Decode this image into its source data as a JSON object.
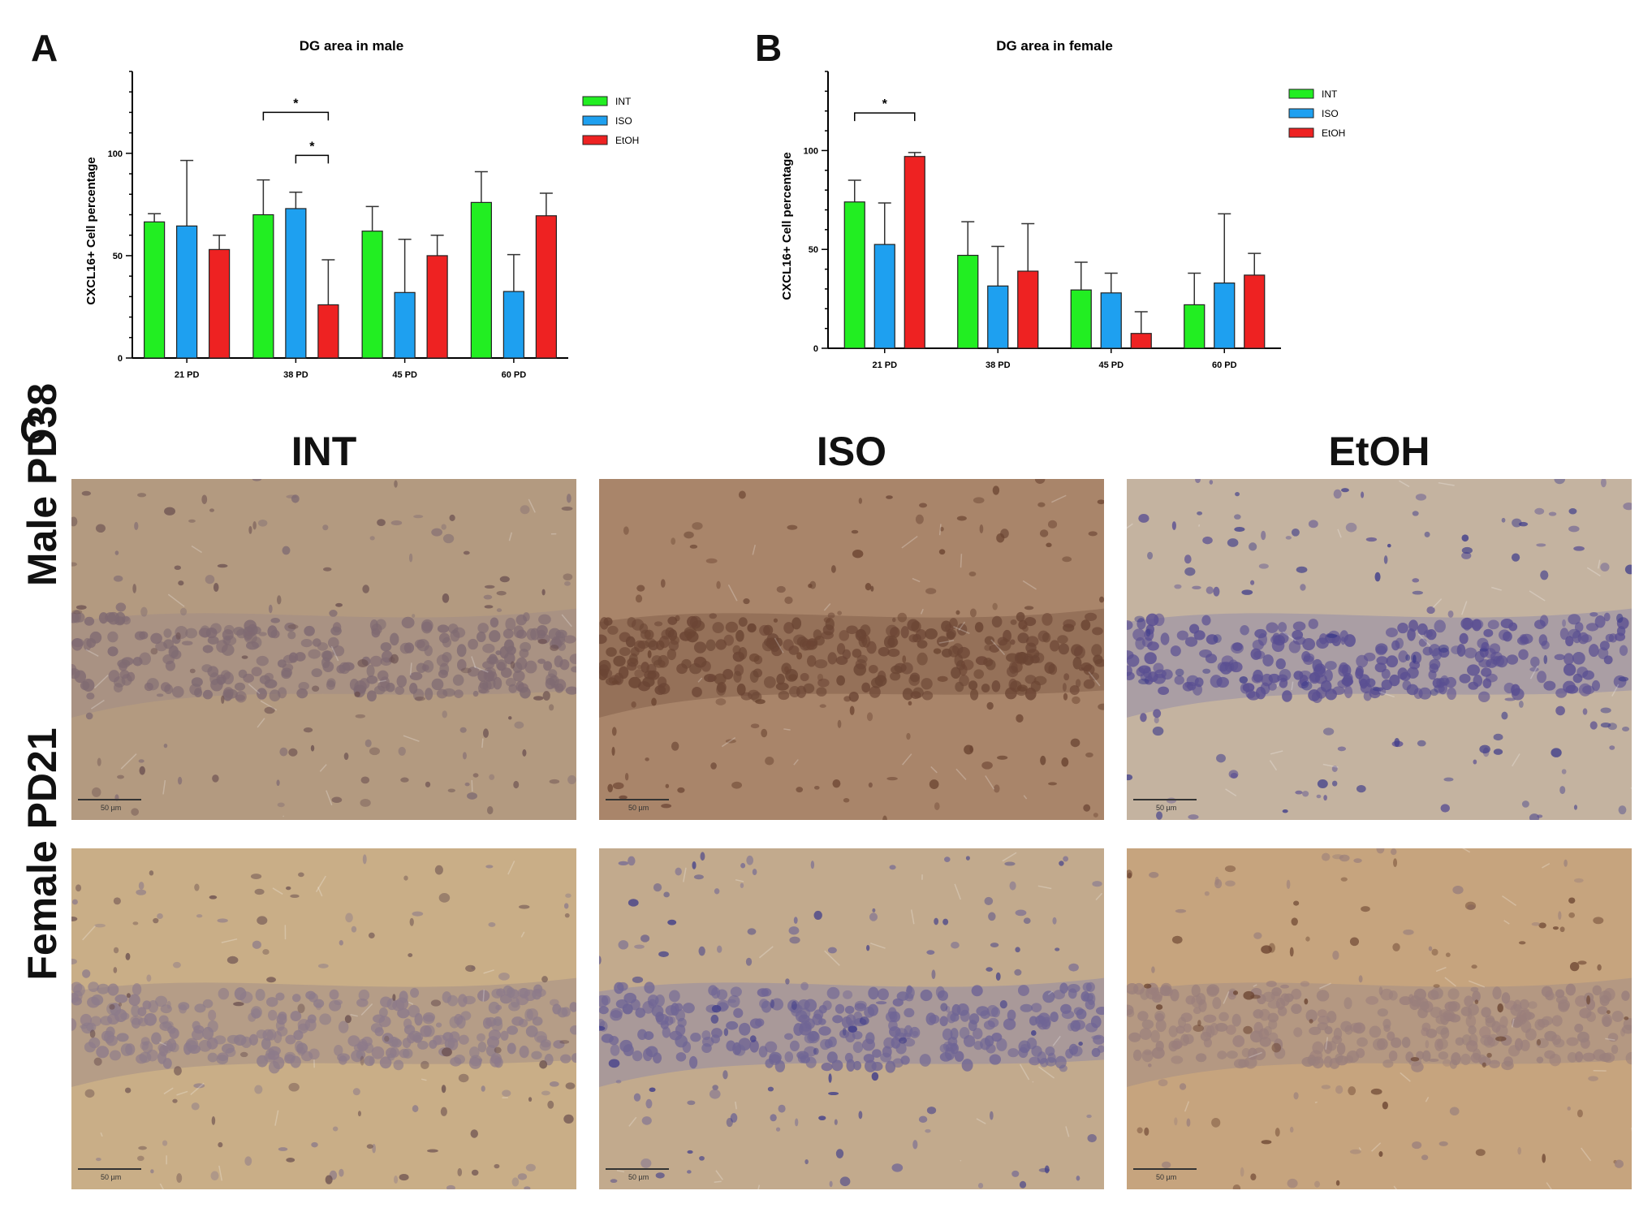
{
  "panels": {
    "a": "A",
    "b": "B",
    "c": "C"
  },
  "chart_data": [
    {
      "type": "bar",
      "title": "DG area in male",
      "ylabel": "CXCL16+ Cell percentage",
      "xlabel": "",
      "categories": [
        "21 PD",
        "38 PD",
        "45 PD",
        "60 PD"
      ],
      "ylim": [
        0,
        140
      ],
      "yticks": [
        0,
        50,
        100
      ],
      "series": [
        {
          "name": "INT",
          "color": "#22ee22",
          "values": [
            66.5,
            70,
            62,
            76
          ],
          "errors": [
            4,
            17,
            12,
            15
          ]
        },
        {
          "name": "ISO",
          "color": "#1ea0f0",
          "values": [
            64.5,
            73,
            32,
            32.5
          ],
          "errors": [
            32,
            8,
            26,
            18
          ]
        },
        {
          "name": "EtOH",
          "color": "#ee2222",
          "values": [
            53,
            26,
            50,
            69.5
          ],
          "errors": [
            7,
            22,
            10,
            11
          ]
        }
      ],
      "significance": [
        {
          "label": "*",
          "category": "38 PD",
          "from": "INT",
          "to": "EtOH",
          "y": 120
        },
        {
          "label": "*",
          "category": "38 PD",
          "from": "ISO",
          "to": "EtOH",
          "y": 99
        }
      ],
      "legend": "top-right"
    },
    {
      "type": "bar",
      "title": "DG area in female",
      "ylabel": "CXCL16+ Cell percentage",
      "xlabel": "",
      "categories": [
        "21 PD",
        "38 PD",
        "45 PD",
        "60 PD"
      ],
      "ylim": [
        0,
        140
      ],
      "yticks": [
        0,
        50,
        100
      ],
      "series": [
        {
          "name": "INT",
          "color": "#22ee22",
          "values": [
            74,
            47,
            29.5,
            22
          ],
          "errors": [
            11,
            17,
            14,
            16
          ]
        },
        {
          "name": "ISO",
          "color": "#1ea0f0",
          "values": [
            52.5,
            31.5,
            28,
            33
          ],
          "errors": [
            21,
            20,
            10,
            35
          ]
        },
        {
          "name": "EtOH",
          "color": "#ee2222",
          "values": [
            97,
            39,
            7.5,
            37
          ],
          "errors": [
            2,
            24,
            11,
            11
          ]
        }
      ],
      "significance": [
        {
          "label": "*",
          "category": "21 PD",
          "from": "INT",
          "to": "EtOH",
          "y": 119
        }
      ],
      "legend": "top-right"
    }
  ],
  "micrographs": {
    "columns": [
      "INT",
      "ISO",
      "EtOH"
    ],
    "rows": [
      "Male PD38",
      "Female PD21"
    ],
    "scale_label": "50 µm"
  }
}
